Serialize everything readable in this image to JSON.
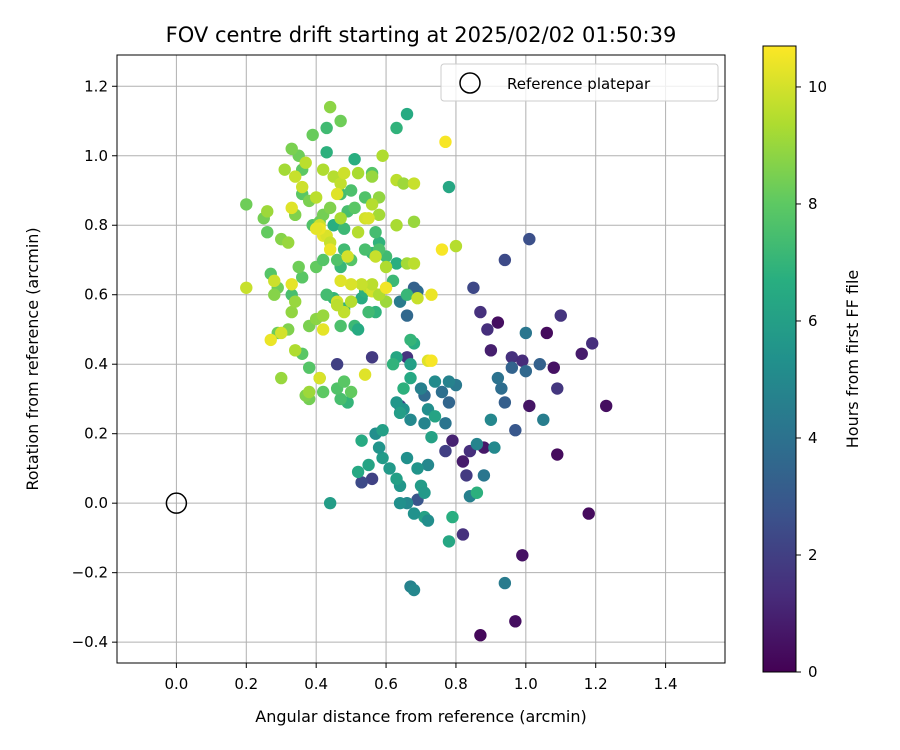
{
  "chart_data": {
    "type": "scatter",
    "title": "FOV centre drift starting at 2025/02/02 01:50:39",
    "xlabel": "Angular distance from reference (arcmin)",
    "ylabel": "Rotation from reference (arcmin)",
    "xlim": [
      -0.17,
      1.57
    ],
    "ylim": [
      -0.46,
      1.29
    ],
    "xticks": [
      "0.0",
      "0.2",
      "0.4",
      "0.6",
      "0.8",
      "1.0",
      "1.2",
      "1.4"
    ],
    "xtick_values": [
      0.0,
      0.2,
      0.4,
      0.6,
      0.8,
      1.0,
      1.2,
      1.4
    ],
    "yticks": [
      "−0.4",
      "−0.2",
      "0.0",
      "0.2",
      "0.4",
      "0.6",
      "0.8",
      "1.0",
      "1.2"
    ],
    "ytick_values": [
      -0.4,
      -0.2,
      0.0,
      0.2,
      0.4,
      0.6,
      0.8,
      1.0,
      1.2
    ],
    "grid": true,
    "legend": {
      "placement": "top-right",
      "label": "Reference platepar",
      "marker": "open-circle"
    },
    "reference_point": {
      "x": 0.0,
      "y": 0.0
    },
    "colorbar": {
      "label": "Hours from first FF file",
      "colormap": "viridis",
      "range": [
        0,
        10.7
      ],
      "ticks": [
        "0",
        "2",
        "4",
        "6",
        "8",
        "10"
      ],
      "tick_values": [
        0,
        2,
        4,
        6,
        8,
        10
      ]
    },
    "points": [
      [
        0.87,
        -0.38,
        0.2
      ],
      [
        0.97,
        -0.34,
        0.4
      ],
      [
        0.99,
        -0.15,
        0.5
      ],
      [
        1.18,
        -0.03,
        0.3
      ],
      [
        1.23,
        0.28,
        0.4
      ],
      [
        1.09,
        0.14,
        0.3
      ],
      [
        1.08,
        0.39,
        0.5
      ],
      [
        1.06,
        0.49,
        0.3
      ],
      [
        0.92,
        0.52,
        0.4
      ],
      [
        1.01,
        0.28,
        0.6
      ],
      [
        0.88,
        0.16,
        0.7
      ],
      [
        0.82,
        0.12,
        0.8
      ],
      [
        0.79,
        0.18,
        1.0
      ],
      [
        0.9,
        0.44,
        0.9
      ],
      [
        1.16,
        0.43,
        0.8
      ],
      [
        1.19,
        0.46,
        1.4
      ],
      [
        1.1,
        0.54,
        1.6
      ],
      [
        1.09,
        0.33,
        1.7
      ],
      [
        0.96,
        0.42,
        1.5
      ],
      [
        0.99,
        0.41,
        1.3
      ],
      [
        0.89,
        0.5,
        1.4
      ],
      [
        0.87,
        0.55,
        1.5
      ],
      [
        0.84,
        0.15,
        1.4
      ],
      [
        0.82,
        -0.09,
        1.5
      ],
      [
        0.83,
        0.08,
        1.8
      ],
      [
        0.77,
        0.15,
        2.0
      ],
      [
        0.66,
        0.42,
        1.6
      ],
      [
        0.56,
        0.42,
        1.8
      ],
      [
        0.64,
        0.28,
        2.2
      ],
      [
        0.56,
        0.07,
        2.1
      ],
      [
        0.53,
        0.06,
        2.4
      ],
      [
        0.46,
        0.4,
        2.0
      ],
      [
        0.94,
        0.7,
        2.4
      ],
      [
        1.01,
        0.76,
        2.6
      ],
      [
        0.85,
        0.62,
        2.3
      ],
      [
        0.97,
        0.21,
        2.9
      ],
      [
        0.94,
        0.29,
        3.2
      ],
      [
        0.96,
        0.39,
        3.4
      ],
      [
        1.0,
        0.38,
        3.6
      ],
      [
        1.04,
        0.4,
        3.3
      ],
      [
        0.93,
        0.33,
        3.8
      ],
      [
        0.92,
        0.36,
        4.0
      ],
      [
        1.0,
        0.49,
        4.2
      ],
      [
        0.94,
        -0.23,
        4.4
      ],
      [
        0.84,
        0.02,
        4.6
      ],
      [
        0.88,
        0.08,
        4.2
      ],
      [
        0.86,
        0.17,
        4.8
      ],
      [
        0.9,
        0.24,
        4.9
      ],
      [
        0.91,
        0.16,
        5.0
      ],
      [
        1.05,
        0.24,
        4.5
      ],
      [
        0.78,
        0.29,
        3.5
      ],
      [
        0.76,
        0.32,
        3.9
      ],
      [
        0.77,
        0.23,
        4.1
      ],
      [
        0.8,
        0.34,
        4.3
      ],
      [
        0.78,
        0.35,
        4.7
      ],
      [
        0.69,
        0.61,
        3.8
      ],
      [
        0.68,
        0.62,
        3.3
      ],
      [
        0.66,
        0.54,
        3.6
      ],
      [
        0.64,
        0.58,
        4.4
      ],
      [
        0.71,
        0.31,
        3.7
      ],
      [
        0.7,
        0.33,
        4.6
      ],
      [
        0.69,
        0.01,
        2.8
      ],
      [
        0.72,
        0.11,
        4.9
      ],
      [
        0.74,
        0.35,
        5.1
      ],
      [
        0.72,
        0.27,
        5.2
      ],
      [
        0.71,
        0.23,
        4.8
      ],
      [
        0.67,
        0.24,
        5.0
      ],
      [
        0.65,
        0.27,
        5.4
      ],
      [
        0.63,
        0.29,
        5.6
      ],
      [
        0.64,
        0.26,
        5.9
      ],
      [
        0.66,
        0.13,
        5.3
      ],
      [
        0.69,
        0.1,
        5.5
      ],
      [
        0.7,
        0.05,
        5.8
      ],
      [
        0.71,
        0.03,
        5.7
      ],
      [
        0.71,
        -0.04,
        6.1
      ],
      [
        0.72,
        -0.05,
        5.2
      ],
      [
        0.68,
        -0.03,
        5.4
      ],
      [
        0.66,
        0.0,
        5.0
      ],
      [
        0.64,
        0.0,
        5.3
      ],
      [
        0.67,
        -0.24,
        4.7
      ],
      [
        0.68,
        -0.25,
        4.9
      ],
      [
        0.64,
        0.05,
        5.6
      ],
      [
        0.63,
        0.07,
        6.0
      ],
      [
        0.61,
        0.1,
        5.7
      ],
      [
        0.59,
        0.13,
        5.8
      ],
      [
        0.58,
        0.16,
        5.5
      ],
      [
        0.57,
        0.2,
        5.2
      ],
      [
        0.59,
        0.21,
        6.0
      ],
      [
        0.55,
        0.11,
        6.2
      ],
      [
        0.52,
        0.09,
        6.4
      ],
      [
        0.53,
        0.18,
        6.5
      ],
      [
        0.44,
        0.0,
        5.9
      ],
      [
        0.73,
        0.19,
        6.1
      ],
      [
        0.74,
        0.25,
        6.2
      ],
      [
        0.78,
        -0.11,
        6.3
      ],
      [
        0.79,
        -0.04,
        6.7
      ],
      [
        0.86,
        0.03,
        6.8
      ],
      [
        0.78,
        0.91,
        6.3
      ],
      [
        0.66,
        1.12,
        6.5
      ],
      [
        0.63,
        1.08,
        6.9
      ],
      [
        0.43,
        1.01,
        6.8
      ],
      [
        0.51,
        0.99,
        6.7
      ],
      [
        0.67,
        0.4,
        6.0
      ],
      [
        0.68,
        0.46,
        6.6
      ],
      [
        0.67,
        0.36,
        6.4
      ],
      [
        0.65,
        0.33,
        6.8
      ],
      [
        0.63,
        0.42,
        6.3
      ],
      [
        0.62,
        0.4,
        6.9
      ],
      [
        0.67,
        0.47,
        7.0
      ],
      [
        0.66,
        0.6,
        7.1
      ],
      [
        0.63,
        0.69,
        6.7
      ],
      [
        0.62,
        0.64,
        7.2
      ],
      [
        0.6,
        0.71,
        7.3
      ],
      [
        0.58,
        0.75,
        6.9
      ],
      [
        0.56,
        0.72,
        7.0
      ],
      [
        0.54,
        0.73,
        7.5
      ],
      [
        0.53,
        0.59,
        6.6
      ],
      [
        0.54,
        0.61,
        6.8
      ],
      [
        0.51,
        0.51,
        7.2
      ],
      [
        0.52,
        0.5,
        6.5
      ],
      [
        0.57,
        0.55,
        6.9
      ],
      [
        0.55,
        0.55,
        7.3
      ],
      [
        0.48,
        0.56,
        6.9
      ],
      [
        0.47,
        0.51,
        7.6
      ],
      [
        0.45,
        0.59,
        7.0
      ],
      [
        0.43,
        0.6,
        7.4
      ],
      [
        0.47,
        0.68,
        7.1
      ],
      [
        0.46,
        0.7,
        7.7
      ],
      [
        0.48,
        0.73,
        7.3
      ],
      [
        0.5,
        0.7,
        7.8
      ],
      [
        0.45,
        0.8,
        6.7
      ],
      [
        0.48,
        0.79,
        7.2
      ],
      [
        0.49,
        0.84,
        7.5
      ],
      [
        0.51,
        0.85,
        7.9
      ],
      [
        0.47,
        0.89,
        7.4
      ],
      [
        0.5,
        0.9,
        7.6
      ],
      [
        0.57,
        0.78,
        7.4
      ],
      [
        0.58,
        0.73,
        7.6
      ],
      [
        0.54,
        0.88,
        7.7
      ],
      [
        0.56,
        0.95,
        7.8
      ],
      [
        0.49,
        0.29,
        7.0
      ],
      [
        0.47,
        0.3,
        7.5
      ],
      [
        0.46,
        0.33,
        7.7
      ],
      [
        0.48,
        0.35,
        7.9
      ],
      [
        0.5,
        0.32,
        8.1
      ],
      [
        0.42,
        0.32,
        8.0
      ],
      [
        0.38,
        0.39,
        7.8
      ],
      [
        0.36,
        0.43,
        7.9
      ],
      [
        0.41,
        0.36,
        8.2
      ],
      [
        0.38,
        0.3,
        8.4
      ],
      [
        0.37,
        0.31,
        8.6
      ],
      [
        0.33,
        0.6,
        7.5
      ],
      [
        0.36,
        0.65,
        7.9
      ],
      [
        0.35,
        0.68,
        8.3
      ],
      [
        0.4,
        0.68,
        8.1
      ],
      [
        0.42,
        0.7,
        7.8
      ],
      [
        0.39,
        0.8,
        7.7
      ],
      [
        0.41,
        0.81,
        8.2
      ],
      [
        0.42,
        0.83,
        8.4
      ],
      [
        0.44,
        0.85,
        8.6
      ],
      [
        0.43,
        1.08,
        7.3
      ],
      [
        0.39,
        1.06,
        8.2
      ],
      [
        0.47,
        1.1,
        8.3
      ],
      [
        0.44,
        1.14,
        8.8
      ],
      [
        0.36,
        0.96,
        8.0
      ],
      [
        0.35,
        1.0,
        8.3
      ],
      [
        0.33,
        1.02,
        8.5
      ],
      [
        0.36,
        0.89,
        7.9
      ],
      [
        0.38,
        0.87,
        8.5
      ],
      [
        0.34,
        0.83,
        8.6
      ],
      [
        0.27,
        0.66,
        7.8
      ],
      [
        0.29,
        0.62,
        8.3
      ],
      [
        0.28,
        0.6,
        8.7
      ],
      [
        0.29,
        0.49,
        8.3
      ],
      [
        0.32,
        0.5,
        8.6
      ],
      [
        0.33,
        0.55,
        8.9
      ],
      [
        0.34,
        0.58,
        9.0
      ],
      [
        0.38,
        0.51,
        8.5
      ],
      [
        0.4,
        0.53,
        8.8
      ],
      [
        0.42,
        0.54,
        9.0
      ],
      [
        0.26,
        0.78,
        8.1
      ],
      [
        0.25,
        0.82,
        8.4
      ],
      [
        0.3,
        0.76,
        8.7
      ],
      [
        0.32,
        0.75,
        9.0
      ],
      [
        0.2,
        0.86,
        8.3
      ],
      [
        0.2,
        0.62,
        9.8
      ],
      [
        0.28,
        0.64,
        9.9
      ],
      [
        0.3,
        0.36,
        9.0
      ],
      [
        0.34,
        0.44,
        9.4
      ],
      [
        0.38,
        0.32,
        9.1
      ],
      [
        0.26,
        0.84,
        9.1
      ],
      [
        0.31,
        0.96,
        9.2
      ],
      [
        0.34,
        0.94,
        9.8
      ],
      [
        0.37,
        0.98,
        9.6
      ],
      [
        0.42,
        0.96,
        9.4
      ],
      [
        0.45,
        0.94,
        9.5
      ],
      [
        0.47,
        0.92,
        9.7
      ],
      [
        0.48,
        0.95,
        9.9
      ],
      [
        0.52,
        0.95,
        9.3
      ],
      [
        0.56,
        0.94,
        9.0
      ],
      [
        0.58,
        0.88,
        8.9
      ],
      [
        0.58,
        0.83,
        9.2
      ],
      [
        0.56,
        0.86,
        9.5
      ],
      [
        0.59,
        1.0,
        9.4
      ],
      [
        0.63,
        0.93,
        9.6
      ],
      [
        0.65,
        0.92,
        9.1
      ],
      [
        0.68,
        0.92,
        9.8
      ],
      [
        0.63,
        0.8,
        9.3
      ],
      [
        0.68,
        0.81,
        9.0
      ],
      [
        0.66,
        0.69,
        9.2
      ],
      [
        0.68,
        0.69,
        9.6
      ],
      [
        0.6,
        0.68,
        9.4
      ],
      [
        0.57,
        0.71,
        9.8
      ],
      [
        0.55,
        0.62,
        9.7
      ],
      [
        0.56,
        0.61,
        10.0
      ],
      [
        0.6,
        0.58,
        9.1
      ],
      [
        0.58,
        0.6,
        9.4
      ],
      [
        0.56,
        0.63,
        9.6
      ],
      [
        0.53,
        0.63,
        9.8
      ],
      [
        0.5,
        0.63,
        10.1
      ],
      [
        0.47,
        0.64,
        10.2
      ],
      [
        0.46,
        0.58,
        10.0
      ],
      [
        0.48,
        0.55,
        9.7
      ],
      [
        0.5,
        0.58,
        9.5
      ],
      [
        0.46,
        0.57,
        9.6
      ],
      [
        0.41,
        0.8,
        9.9
      ],
      [
        0.42,
        0.77,
        10.3
      ],
      [
        0.43,
        0.77,
        10.1
      ],
      [
        0.44,
        0.75,
        9.8
      ],
      [
        0.41,
        0.79,
        10.4
      ],
      [
        0.4,
        0.88,
        9.6
      ],
      [
        0.36,
        0.91,
        9.9
      ],
      [
        0.33,
        0.85,
        10.2
      ],
      [
        0.3,
        0.49,
        10.0
      ],
      [
        0.27,
        0.47,
        10.4
      ],
      [
        0.33,
        0.63,
        10.3
      ],
      [
        0.41,
        0.36,
        10.1
      ],
      [
        0.42,
        0.5,
        10.3
      ],
      [
        0.54,
        0.37,
        10.2
      ],
      [
        0.54,
        0.82,
        10.0
      ],
      [
        0.6,
        0.62,
        10.5
      ],
      [
        0.69,
        0.59,
        9.8
      ],
      [
        0.72,
        0.41,
        10.2
      ],
      [
        0.73,
        0.41,
        10.6
      ],
      [
        0.73,
        0.6,
        10.4
      ],
      [
        0.76,
        0.73,
        10.6
      ],
      [
        0.77,
        1.04,
        10.6
      ],
      [
        0.8,
        0.74,
        9.5
      ],
      [
        0.46,
        0.89,
        10.2
      ],
      [
        0.55,
        0.82,
        10.1
      ],
      [
        0.47,
        0.82,
        9.3
      ],
      [
        0.52,
        0.78,
        9.5
      ],
      [
        0.49,
        0.71,
        10.0
      ],
      [
        0.44,
        0.73,
        10.4
      ],
      [
        0.4,
        0.79,
        10.3
      ]
    ]
  }
}
